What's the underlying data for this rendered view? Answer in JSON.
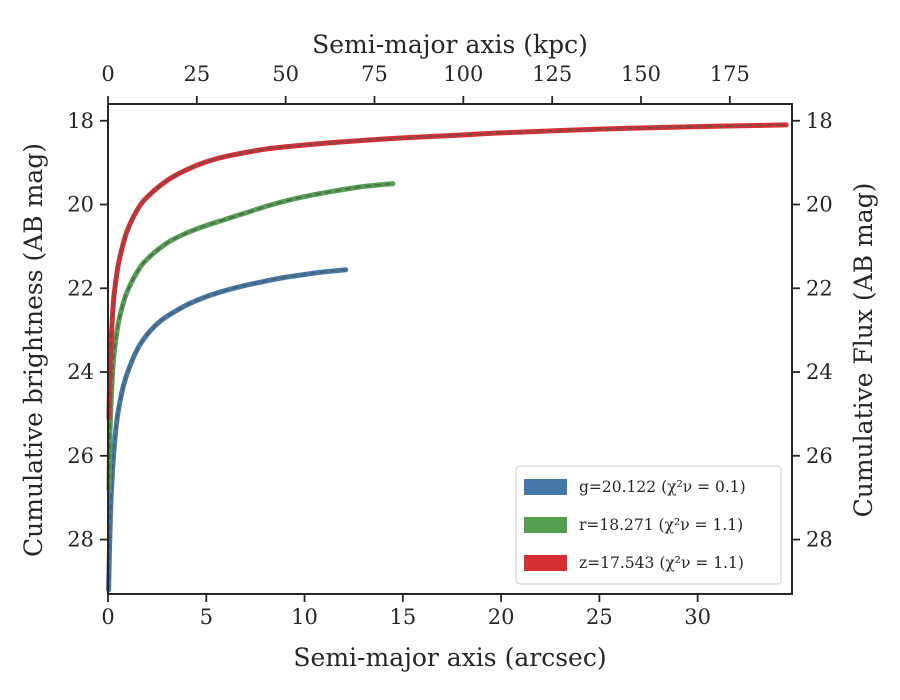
{
  "chart_data": {
    "type": "line",
    "xlabel": "Semi-major axis (arcsec)",
    "ylabel": "Cumulative brightness (AB mag)",
    "x2label": "Semi-major axis (kpc)",
    "y2label": "Cumulative Flux (AB mag)",
    "xlim": [
      0,
      34.8
    ],
    "ylim": [
      29.3,
      17.6
    ],
    "x2lim": [
      0,
      192.5
    ],
    "y_inverted": true,
    "xticks": [
      0,
      5,
      10,
      15,
      20,
      25,
      30
    ],
    "yticks": [
      18,
      20,
      22,
      24,
      26,
      28
    ],
    "x2ticks": [
      0,
      25,
      50,
      75,
      100,
      125,
      150,
      175
    ],
    "grid": false,
    "legend_position": "lower-right",
    "series": [
      {
        "name": "g=20.122 (χ²ν = 0.1)",
        "color": "#4477aa",
        "x": [
          0.03,
          0.1,
          0.2,
          0.35,
          0.5,
          0.75,
          1.0,
          1.5,
          2.0,
          2.5,
          3.0,
          4.0,
          5.0,
          6.0,
          7.0,
          8.0,
          9.0,
          10.0,
          11.0,
          12.1
        ],
        "y": [
          29.2,
          27.8,
          26.6,
          25.6,
          25.0,
          24.4,
          24.0,
          23.45,
          23.1,
          22.85,
          22.67,
          22.4,
          22.2,
          22.05,
          21.93,
          21.83,
          21.74,
          21.67,
          21.61,
          21.56
        ]
      },
      {
        "name": "r=18.271 (χ²ν = 1.1)",
        "color": "#55a050",
        "x": [
          0.05,
          0.1,
          0.2,
          0.3,
          0.5,
          0.75,
          1.0,
          1.5,
          2.0,
          3.0,
          4.0,
          5.0,
          6.0,
          7.0,
          8.0,
          9.0,
          10.0,
          11.0,
          12.0,
          13.0,
          14.5
        ],
        "y": [
          26.8,
          25.4,
          24.3,
          23.6,
          22.9,
          22.4,
          22.05,
          21.6,
          21.3,
          20.92,
          20.68,
          20.5,
          20.35,
          20.2,
          20.05,
          19.92,
          19.81,
          19.72,
          19.64,
          19.57,
          19.5
        ]
      },
      {
        "name": "z=17.543 (χ²ν = 1.1)",
        "color": "#d62f33",
        "x": [
          0.05,
          0.1,
          0.2,
          0.3,
          0.5,
          0.75,
          1.0,
          1.5,
          2.0,
          3.0,
          4.0,
          5.0,
          6.0,
          8.0,
          10.0,
          12.0,
          15.0,
          18.0,
          20.0,
          25.0,
          30.0,
          34.5
        ],
        "y": [
          25.1,
          23.9,
          22.9,
          22.2,
          21.5,
          20.98,
          20.6,
          20.12,
          19.82,
          19.43,
          19.17,
          18.98,
          18.85,
          18.68,
          18.58,
          18.5,
          18.41,
          18.34,
          18.29,
          18.2,
          18.14,
          18.1
        ]
      }
    ]
  }
}
